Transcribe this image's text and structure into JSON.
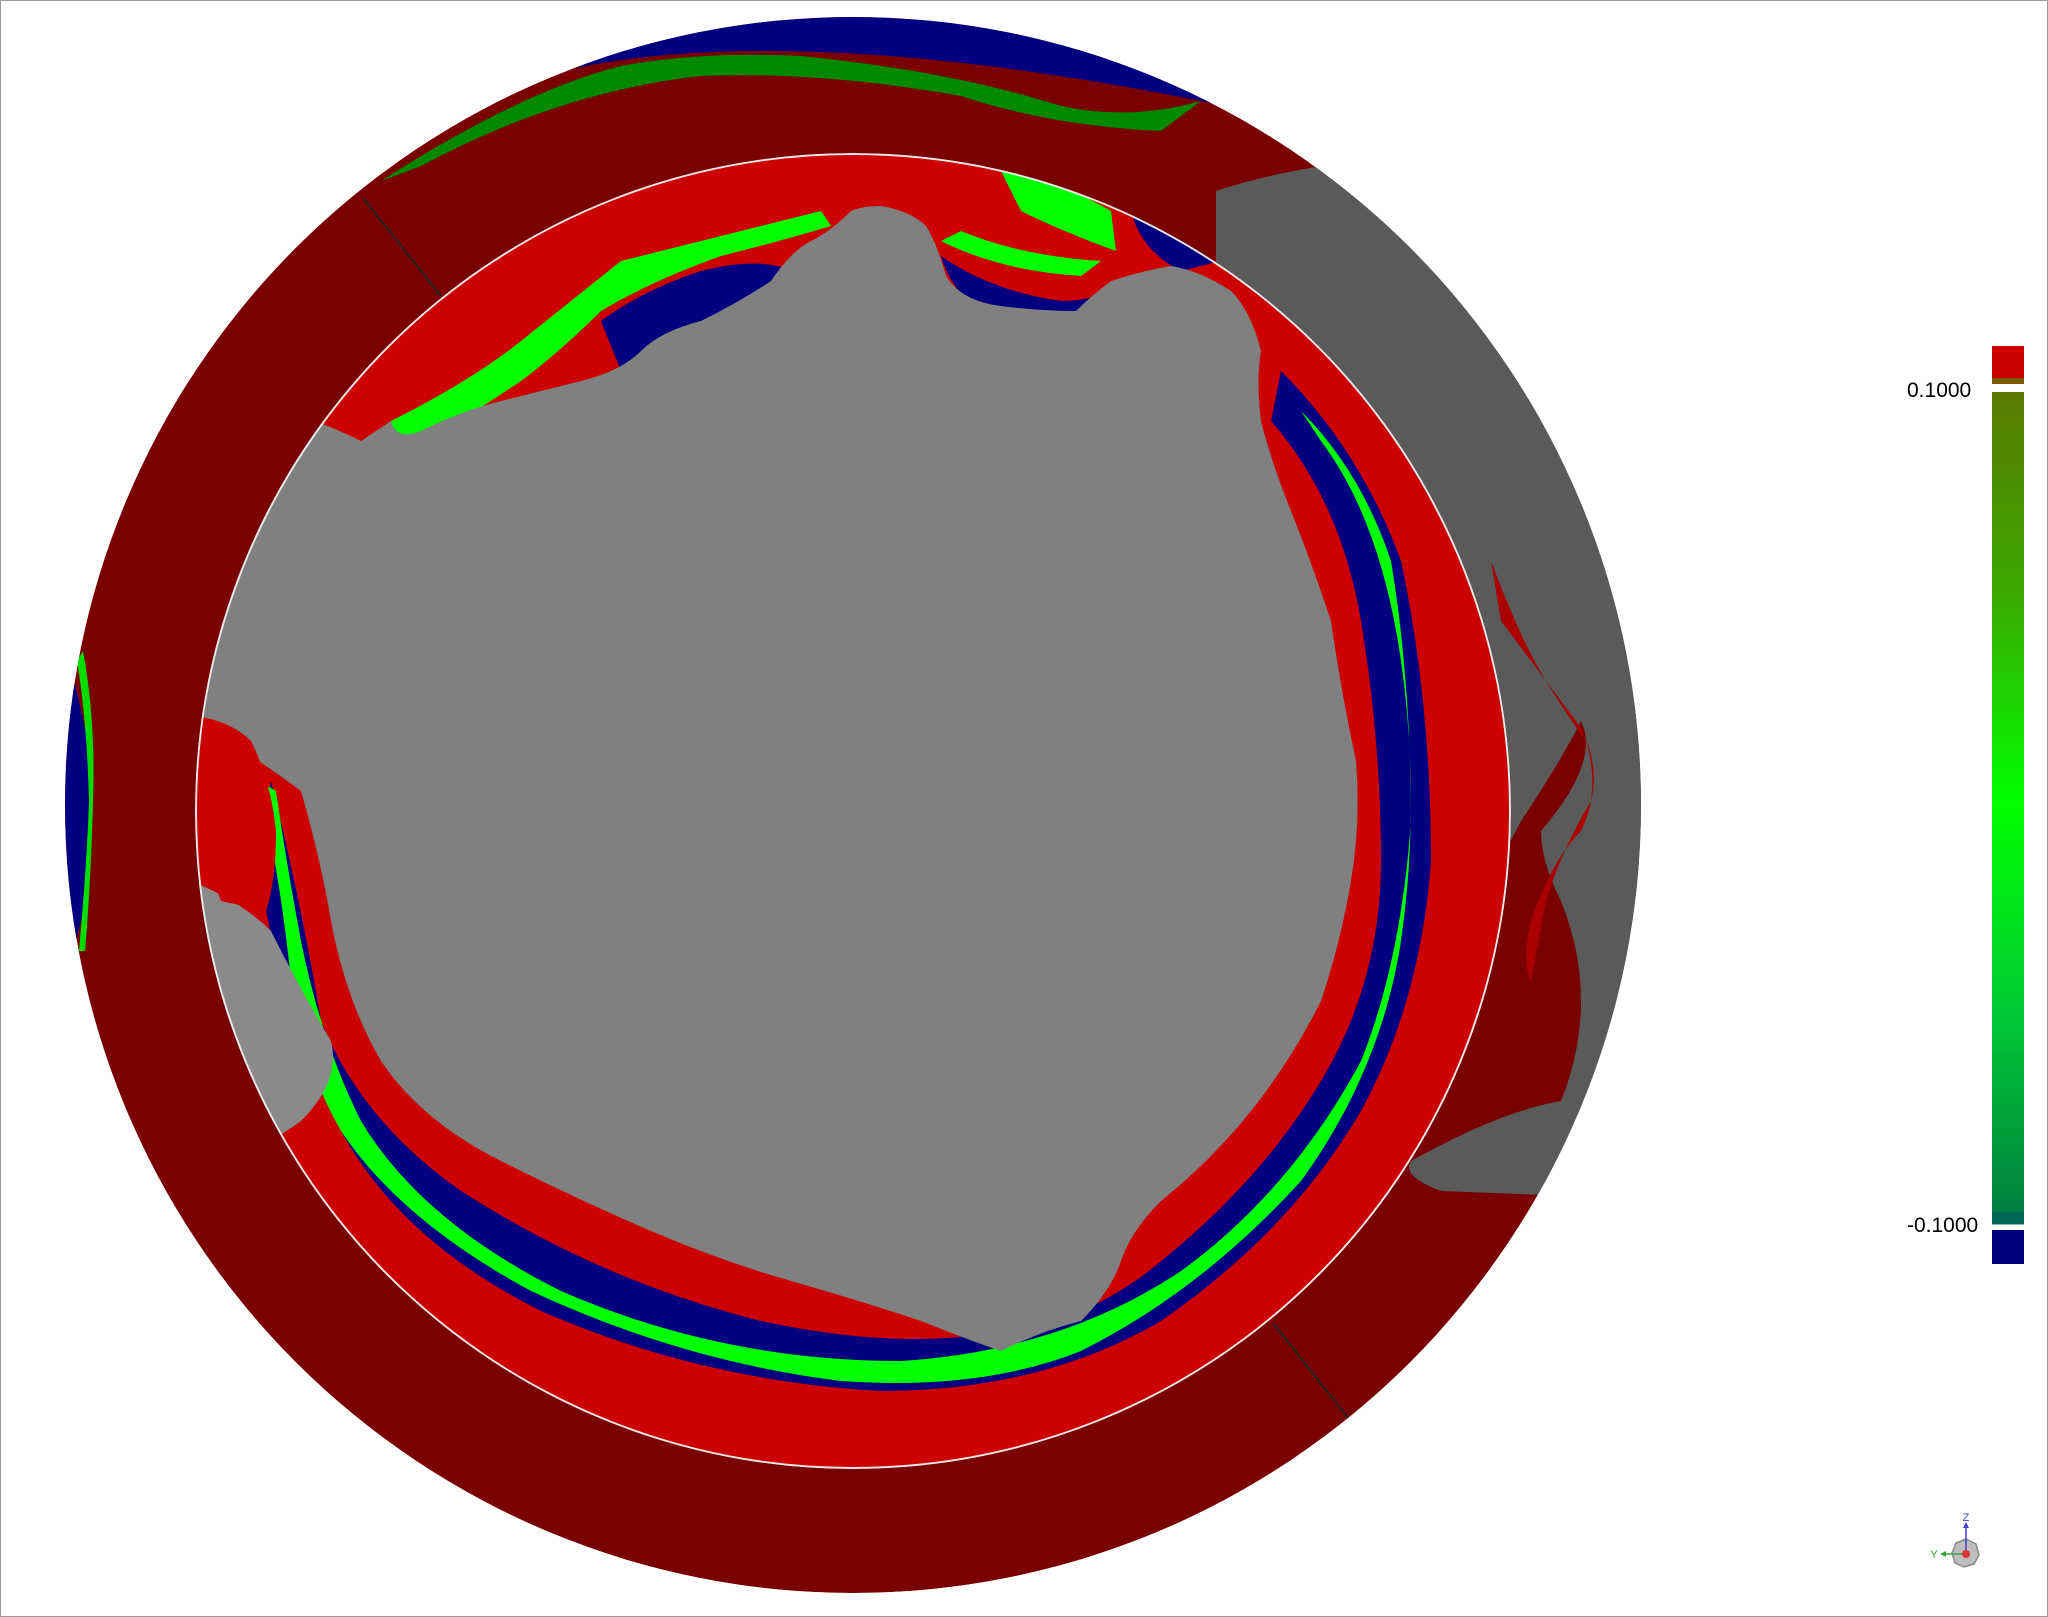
{
  "legend": {
    "max_label": "0.1000",
    "min_label": "-0.1000",
    "colors": {
      "above": "#cc0000",
      "top": "#5a7a00",
      "mid": "#00ff00",
      "bottom": "#008040",
      "below": "#000080"
    }
  },
  "axis_triad": {
    "z_label": "Z",
    "y_label": "Y"
  },
  "scene_colors": {
    "outer_ring": "#7a0000",
    "inner_red": "#cc0000",
    "green": "#00ff00",
    "dark_green": "#008800",
    "navy": "#000080",
    "gray": "#808080",
    "dark_gray": "#606060"
  }
}
